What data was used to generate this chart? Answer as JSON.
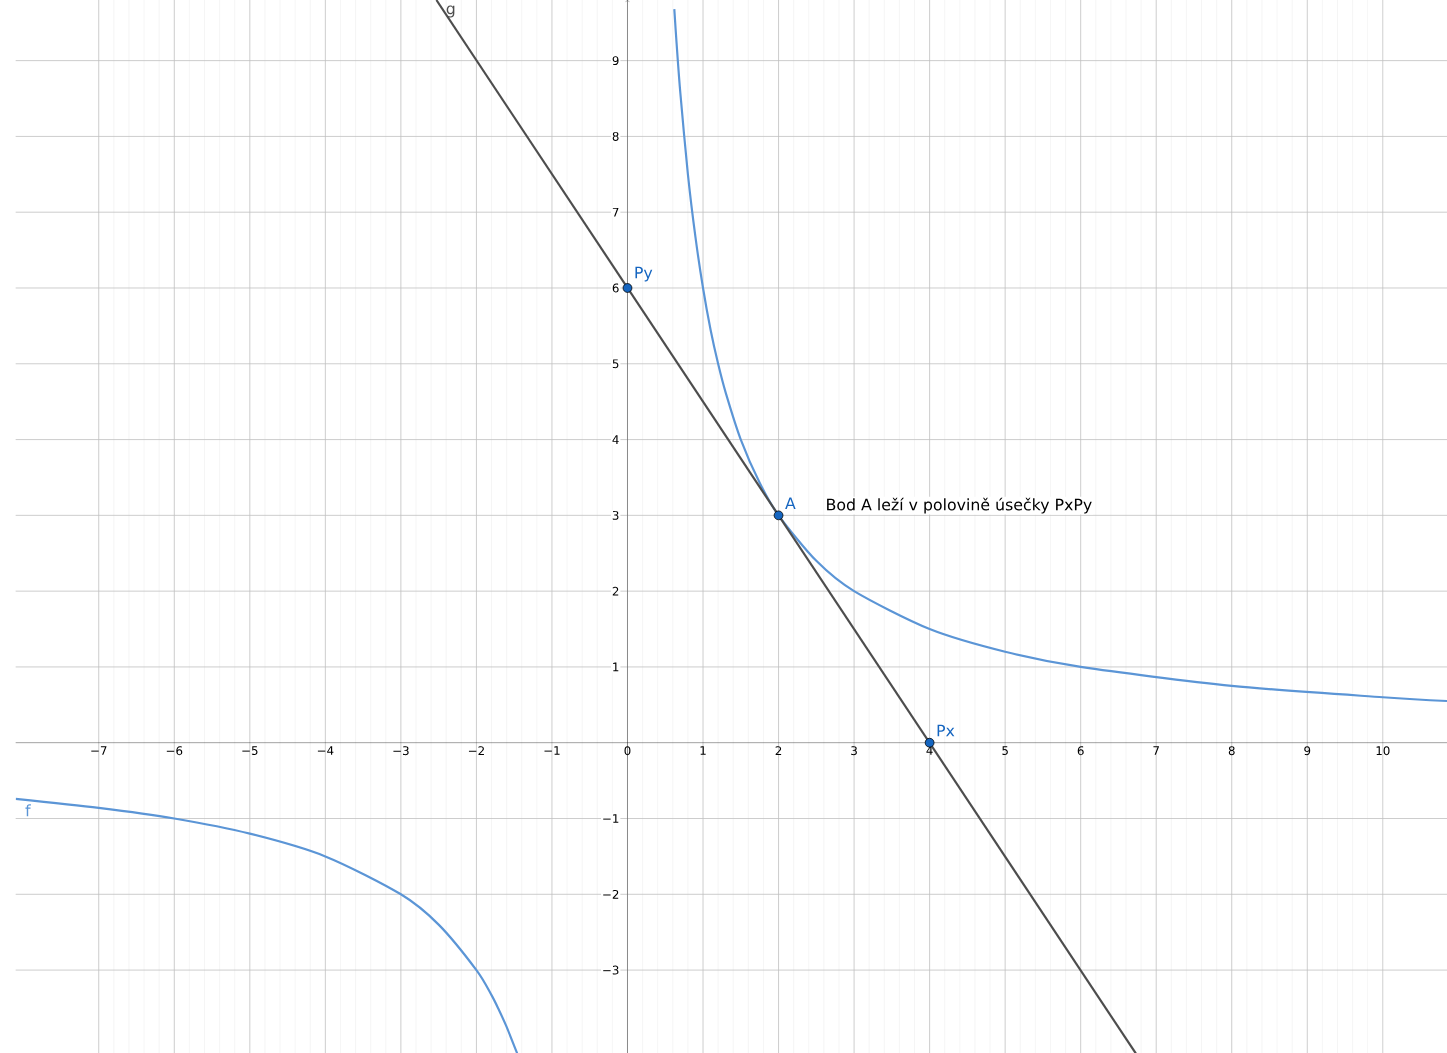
{
  "chart_data": {
    "type": "line",
    "xlim": [
      -8.1,
      10.85
    ],
    "ylim": [
      -4.1,
      9.8
    ],
    "xticks": [
      {
        "value": -7,
        "label": "−7"
      },
      {
        "value": -6,
        "label": "−6"
      },
      {
        "value": -5,
        "label": "−5"
      },
      {
        "value": -4,
        "label": "−4"
      },
      {
        "value": -3,
        "label": "−3"
      },
      {
        "value": -2,
        "label": "−2"
      },
      {
        "value": -1,
        "label": "−1"
      },
      0,
      1,
      2,
      3,
      4,
      5,
      6,
      7,
      8,
      9,
      10
    ],
    "yticks": [
      {
        "value": -3,
        "label": "−3"
      },
      {
        "value": -2,
        "label": "−2"
      },
      {
        "value": -1,
        "label": "−1"
      },
      1,
      2,
      3,
      4,
      5,
      6,
      7,
      8,
      9
    ],
    "grid": true,
    "legend": false,
    "marker": "circle",
    "annotations": [
      "Bod A leží v polovině úsečky PxPy"
    ],
    "series": [
      {
        "name": "f",
        "color": "#5b95d6",
        "marker": "none",
        "x": [
          -8.1,
          -7,
          -6,
          -5,
          -4,
          -3,
          -2.5,
          -2,
          -1.8,
          -1.7,
          -1.6,
          -1.46,
          null,
          0.62,
          0.65,
          0.7,
          0.8,
          0.9,
          1,
          1.1,
          1.2,
          1.3,
          1.5,
          1.75,
          2,
          2.5,
          3,
          4,
          5,
          6,
          8,
          10,
          10.85
        ],
        "values": [
          -0.74,
          -0.86,
          -1,
          -1.2,
          -1.5,
          -2,
          -2.4,
          -3,
          -3.33,
          -3.53,
          -3.75,
          -4.1,
          null,
          9.68,
          9.23,
          8.57,
          7.5,
          6.67,
          6,
          5.45,
          5,
          4.62,
          4,
          3.43,
          3,
          2.4,
          2,
          1.5,
          1.2,
          1,
          0.75,
          0.6,
          0.55
        ]
      },
      {
        "name": "g",
        "color": "#4d4d4d",
        "marker": "none",
        "x": [
          -2.53,
          6.73
        ],
        "values": [
          9.8,
          -4.1
        ]
      },
      {
        "name": "A",
        "type": "scatter",
        "color": "#1565c0",
        "x": [
          2
        ],
        "values": [
          3
        ]
      },
      {
        "name": "Px",
        "type": "scatter",
        "color": "#1565c0",
        "x": [
          4
        ],
        "values": [
          0
        ]
      },
      {
        "name": "Py",
        "type": "scatter",
        "color": "#1565c0",
        "x": [
          0
        ],
        "values": [
          6
        ]
      }
    ]
  }
}
